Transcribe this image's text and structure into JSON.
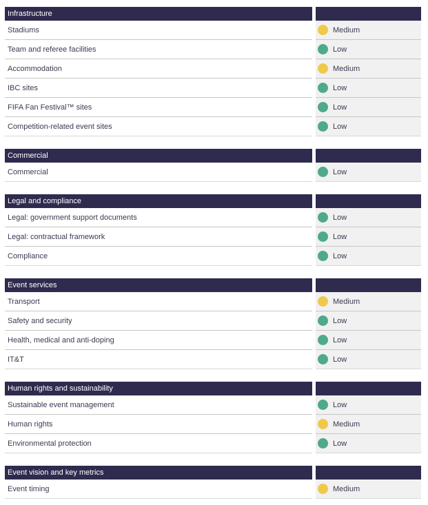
{
  "palette": {
    "header_bg": "#2E2B4E",
    "header_text": "#FFFFFF",
    "row_text": "#3A3A52",
    "right_cell_bg": "#F1F1F1",
    "separator": "#C6C6C6",
    "section_end_separator": "#D8D8D8",
    "low": "#4FA98C",
    "medium": "#F0C94A"
  },
  "status_levels": [
    "Low",
    "Medium"
  ],
  "sections": [
    {
      "title": "Infrastructure",
      "rows": [
        {
          "label": "Stadiums",
          "status": "Medium"
        },
        {
          "label": "Team and referee facilities",
          "status": "Low"
        },
        {
          "label": "Accommodation",
          "status": "Medium"
        },
        {
          "label": "IBC sites",
          "status": "Low"
        },
        {
          "label": "FIFA Fan Festival™ sites",
          "status": "Low"
        },
        {
          "label": "Competition-related event sites",
          "status": "Low"
        }
      ]
    },
    {
      "title": "Commercial",
      "rows": [
        {
          "label": "Commercial",
          "status": "Low"
        }
      ]
    },
    {
      "title": "Legal and compliance",
      "rows": [
        {
          "label": "Legal: government support documents",
          "status": "Low"
        },
        {
          "label": "Legal: contractual framework",
          "status": "Low"
        },
        {
          "label": "Compliance",
          "status": "Low"
        }
      ]
    },
    {
      "title": "Event services",
      "rows": [
        {
          "label": "Transport",
          "status": "Medium"
        },
        {
          "label": "Safety and security",
          "status": "Low"
        },
        {
          "label": "Health, medical and anti-doping",
          "status": "Low"
        },
        {
          "label": "IT&T",
          "status": "Low"
        }
      ]
    },
    {
      "title": "Human rights and sustainability",
      "rows": [
        {
          "label": "Sustainable event management",
          "status": "Low"
        },
        {
          "label": "Human rights",
          "status": "Medium"
        },
        {
          "label": "Environmental protection",
          "status": "Low"
        }
      ]
    },
    {
      "title": "Event vision and key metrics",
      "rows": [
        {
          "label": "Event timing",
          "status": "Medium"
        }
      ]
    }
  ]
}
